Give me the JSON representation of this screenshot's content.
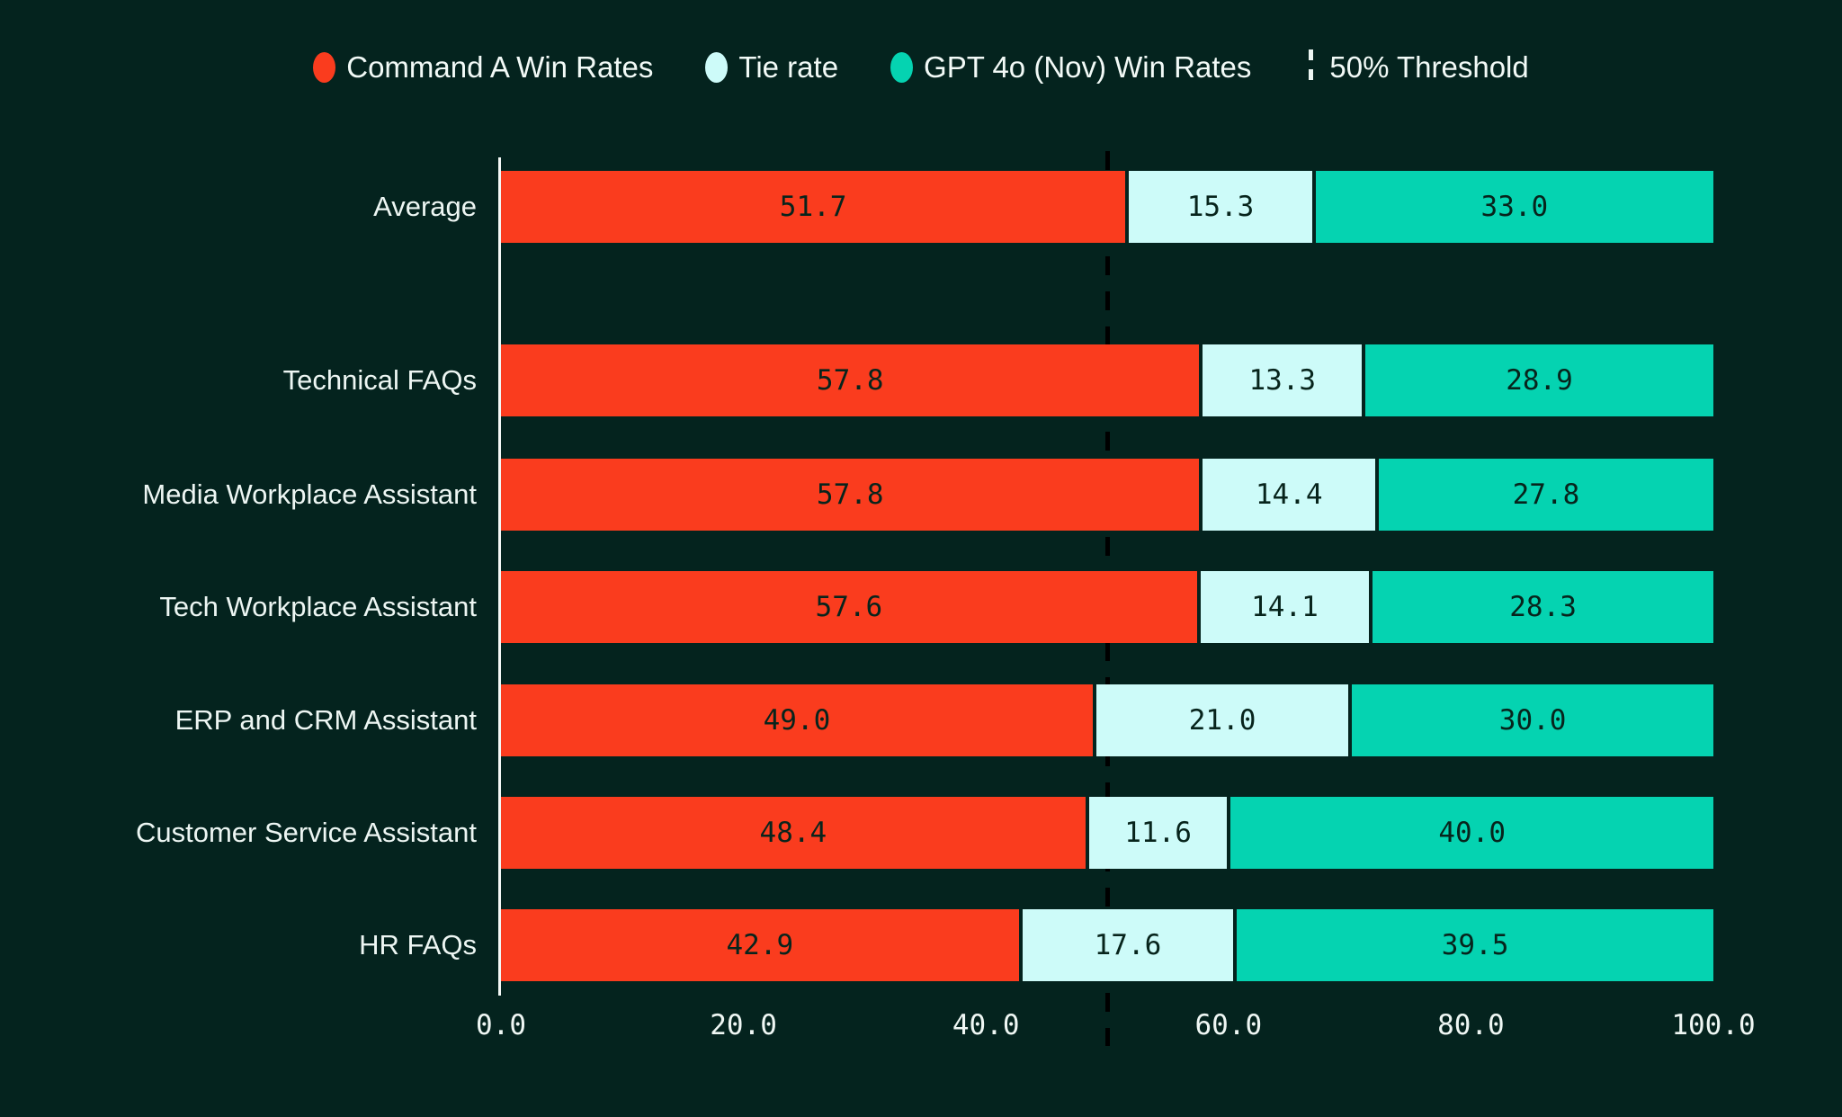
{
  "colors": {
    "background": "#04231E",
    "command_a": "#FA3C1E",
    "tie": "#CDFBF9",
    "gpt4o": "#05D3B1",
    "label_text": "#EDF6F3",
    "value_text": "#07241C",
    "axis_line": "#F4F8F6",
    "threshold_line": "#000000"
  },
  "legend": {
    "items": [
      {
        "label": "Command A Win Rates",
        "marker": "circle",
        "color": "#FA3C1E"
      },
      {
        "label": "Tie rate",
        "marker": "circle",
        "color": "#CDFBF9"
      },
      {
        "label": "GPT 4o (Nov) Win Rates",
        "marker": "circle",
        "color": "#05D3B1"
      },
      {
        "label": "50% Threshold",
        "marker": "dashed-line",
        "color": "#EDF6F3"
      }
    ]
  },
  "chart_data": {
    "type": "bar",
    "orientation": "horizontal",
    "stacked": true,
    "categories": [
      "Average",
      "Technical FAQs",
      "Media Workplace Assistant",
      "Tech Workplace Assistant",
      "ERP and CRM Assistant",
      "Customer Service Assistant",
      "HR FAQs"
    ],
    "series": [
      {
        "name": "Command A Win Rates",
        "color": "#FA3C1E",
        "values": [
          51.7,
          57.8,
          57.8,
          57.6,
          49.0,
          48.4,
          42.9
        ]
      },
      {
        "name": "Tie rate",
        "color": "#CDFBF9",
        "values": [
          15.3,
          13.3,
          14.4,
          14.1,
          21.0,
          11.6,
          17.6
        ]
      },
      {
        "name": "GPT 4o (Nov) Win Rates",
        "color": "#05D3B1",
        "values": [
          33.0,
          28.9,
          27.8,
          28.3,
          30.0,
          40.0,
          39.5
        ]
      }
    ],
    "threshold": {
      "value": 50,
      "label": "50% Threshold"
    },
    "xlim": [
      0,
      100
    ],
    "x_tick_values": [
      0,
      20,
      40,
      60,
      80,
      100
    ],
    "x_tick_labels": [
      "0.0",
      "20.0",
      "40.0",
      "60.0",
      "80.0",
      "100.0"
    ],
    "value_label_decimals": 1,
    "legend_position": "top-center",
    "grid": false
  }
}
